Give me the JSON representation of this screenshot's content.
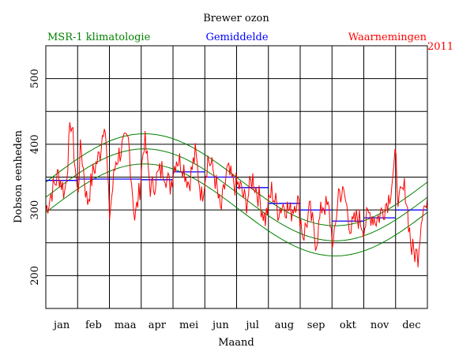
{
  "chart_data": {
    "type": "line",
    "title": "Brewer ozon",
    "year": "2011",
    "xlabel": "Maand",
    "ylabel": "Dobson eenheden",
    "ylim": [
      150,
      550
    ],
    "xlim": [
      0,
      12
    ],
    "y_ticks": [
      200,
      300,
      400,
      500
    ],
    "grid": true,
    "months": [
      "jan",
      "feb",
      "maa",
      "apr",
      "mei",
      "jun",
      "jul",
      "aug",
      "sep",
      "okt",
      "nov",
      "dec"
    ],
    "legend": {
      "climatology": "MSR-1 klimatologie",
      "mean": "Gemiddelde",
      "observations": "Waarnemingen"
    },
    "colors": {
      "climatology": "#008000",
      "mean": "#0000ff",
      "observations": "#ff0000",
      "grid": "#000000"
    },
    "climatology_model": {
      "series": [
        "upper",
        "middle",
        "lower"
      ],
      "mean_value": [
        346,
        323,
        300
      ],
      "amplitude": 70,
      "peak_month": 3.1
    },
    "monthly_means": [
      345,
      347,
      347,
      346,
      358,
      350,
      334,
      310,
      300,
      283,
      288,
      300
    ],
    "observation_keypoints": {
      "x": [
        0.0,
        0.2,
        0.4,
        0.6,
        0.8,
        1.0,
        1.1,
        1.3,
        1.5,
        1.7,
        1.85,
        2.0,
        2.2,
        2.4,
        2.6,
        2.8,
        2.95,
        3.1,
        3.3,
        3.5,
        3.7,
        3.9,
        4.1,
        4.3,
        4.5,
        4.7,
        4.9,
        5.1,
        5.3,
        5.5,
        5.7,
        5.9,
        6.1,
        6.3,
        6.5,
        6.7,
        6.9,
        7.1,
        7.3,
        7.5,
        7.7,
        7.9,
        8.1,
        8.3,
        8.5,
        8.7,
        8.9,
        9.05,
        9.2,
        9.4,
        9.6,
        9.8,
        10.0,
        10.2,
        10.4,
        10.6,
        10.8,
        11.0,
        11.1,
        11.3,
        11.5,
        11.7,
        11.85,
        12.0
      ],
      "values": [
        300,
        330,
        355,
        325,
        440,
        320,
        400,
        310,
        360,
        385,
        445,
        290,
        375,
        395,
        405,
        285,
        330,
        410,
        330,
        350,
        365,
        335,
        380,
        370,
        340,
        385,
        320,
        380,
        355,
        295,
        360,
        340,
        335,
        310,
        350,
        320,
        285,
        330,
        300,
        310,
        295,
        320,
        260,
        300,
        250,
        310,
        300,
        240,
        330,
        320,
        270,
        290,
        275,
        295,
        285,
        300,
        320,
        380,
        310,
        335,
        240,
        230,
        310,
        300
      ]
    }
  }
}
